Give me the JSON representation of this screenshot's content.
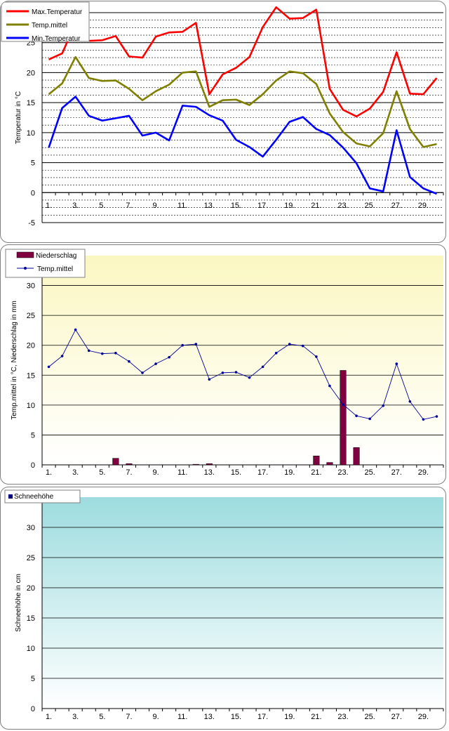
{
  "chart_data": [
    {
      "type": "line",
      "ylabel": "Temperatur in °C",
      "ylim": [
        -5,
        30
      ],
      "yticks": [
        -5,
        0,
        5,
        10,
        15,
        20,
        25,
        30
      ],
      "x": [
        1,
        2,
        3,
        4,
        5,
        6,
        7,
        8,
        9,
        10,
        11,
        12,
        13,
        14,
        15,
        16,
        17,
        18,
        19,
        20,
        21,
        22,
        23,
        24,
        25,
        26,
        27,
        28,
        29,
        30
      ],
      "xtick_labels": [
        "1.",
        "3.",
        "5.",
        "7.",
        "9.",
        "11.",
        "13.",
        "15.",
        "17.",
        "19.",
        "21.",
        "23.",
        "25.",
        "27.",
        "29."
      ],
      "grid": "horizontal dashed",
      "legend": "top-left",
      "series": [
        {
          "name": "Max.Temperatur",
          "color": "#ff0000",
          "values": [
            22.2,
            23.2,
            28.3,
            25.3,
            25.4,
            26.1,
            22.7,
            22.5,
            26.0,
            26.7,
            26.8,
            28.3,
            16.4,
            19.7,
            20.8,
            22.6,
            27.6,
            30.9,
            29.0,
            29.1,
            30.5,
            17.3,
            13.8,
            12.7,
            14.0,
            16.8,
            23.4,
            16.5,
            16.4,
            19.1
          ]
        },
        {
          "name": "Temp.mittel",
          "color": "#808000",
          "values": [
            16.4,
            18.2,
            22.6,
            19.1,
            18.6,
            18.7,
            17.3,
            15.4,
            16.9,
            18.0,
            20.0,
            20.2,
            14.3,
            15.4,
            15.5,
            14.6,
            16.4,
            18.7,
            20.2,
            19.9,
            18.1,
            13.2,
            10.1,
            8.2,
            7.7,
            9.9,
            16.9,
            10.6,
            7.6,
            8.1
          ]
        },
        {
          "name": "Min.Temperatur",
          "color": "#0000ff",
          "values": [
            7.5,
            14.1,
            16.0,
            12.8,
            12.0,
            12.4,
            12.8,
            9.5,
            10.0,
            8.7,
            14.5,
            14.3,
            12.9,
            12.0,
            8.8,
            7.6,
            6.0,
            8.8,
            11.8,
            12.6,
            10.6,
            9.6,
            7.5,
            4.9,
            0.7,
            0.2,
            10.4,
            2.6,
            0.7,
            -0.2
          ]
        }
      ]
    },
    {
      "type": "bar+line",
      "ylabel": "Temp.mittel in °C, Niederschlag in mm",
      "ylim": [
        0,
        35
      ],
      "yticks": [
        0,
        5,
        10,
        15,
        20,
        25,
        30
      ],
      "x": [
        1,
        2,
        3,
        4,
        5,
        6,
        7,
        8,
        9,
        10,
        11,
        12,
        13,
        14,
        15,
        16,
        17,
        18,
        19,
        20,
        21,
        22,
        23,
        24,
        25,
        26,
        27,
        28,
        29,
        30
      ],
      "xtick_labels": [
        "1.",
        "3.",
        "5.",
        "7.",
        "9.",
        "11.",
        "13.",
        "15.",
        "17.",
        "19.",
        "21.",
        "23.",
        "25.",
        "27.",
        "29."
      ],
      "legend": "top-left",
      "series": [
        {
          "name": "Niederschlag",
          "kind": "bar",
          "color": "#800040",
          "values": [
            0,
            0,
            0,
            0,
            0,
            1.1,
            0.2,
            0,
            0,
            0,
            0,
            0.1,
            0.2,
            0,
            0,
            0,
            0,
            0,
            0,
            0,
            1.5,
            0.4,
            15.8,
            2.9,
            0,
            0,
            0,
            0,
            0,
            0
          ]
        },
        {
          "name": "Temp.mittel",
          "kind": "line",
          "color": "#00009a",
          "values": [
            16.4,
            18.2,
            22.6,
            19.1,
            18.6,
            18.7,
            17.3,
            15.4,
            16.9,
            18.0,
            20.0,
            20.2,
            14.3,
            15.4,
            15.5,
            14.6,
            16.4,
            18.7,
            20.2,
            19.9,
            18.1,
            13.2,
            10.1,
            8.2,
            7.7,
            9.9,
            16.9,
            10.6,
            7.6,
            8.1
          ]
        }
      ]
    },
    {
      "type": "bar",
      "ylabel": "Schneehöhe in cm",
      "ylim": [
        0,
        35
      ],
      "yticks": [
        0,
        5,
        10,
        15,
        20,
        25,
        30
      ],
      "x": [
        1,
        2,
        3,
        4,
        5,
        6,
        7,
        8,
        9,
        10,
        11,
        12,
        13,
        14,
        15,
        16,
        17,
        18,
        19,
        20,
        21,
        22,
        23,
        24,
        25,
        26,
        27,
        28,
        29,
        30
      ],
      "xtick_labels": [
        "1.",
        "3.",
        "5.",
        "7.",
        "9.",
        "11.",
        "13.",
        "15.",
        "17.",
        "19.",
        "21.",
        "23.",
        "25.",
        "27.",
        "29."
      ],
      "legend": "top-left",
      "series": [
        {
          "name": "Schneehöhe",
          "color": "#000080",
          "values": [
            0,
            0,
            0,
            0,
            0,
            0,
            0,
            0,
            0,
            0,
            0,
            0,
            0,
            0,
            0,
            0,
            0,
            0,
            0,
            0,
            0,
            0,
            0,
            0,
            0,
            0,
            0,
            0,
            0,
            0
          ]
        }
      ]
    }
  ]
}
